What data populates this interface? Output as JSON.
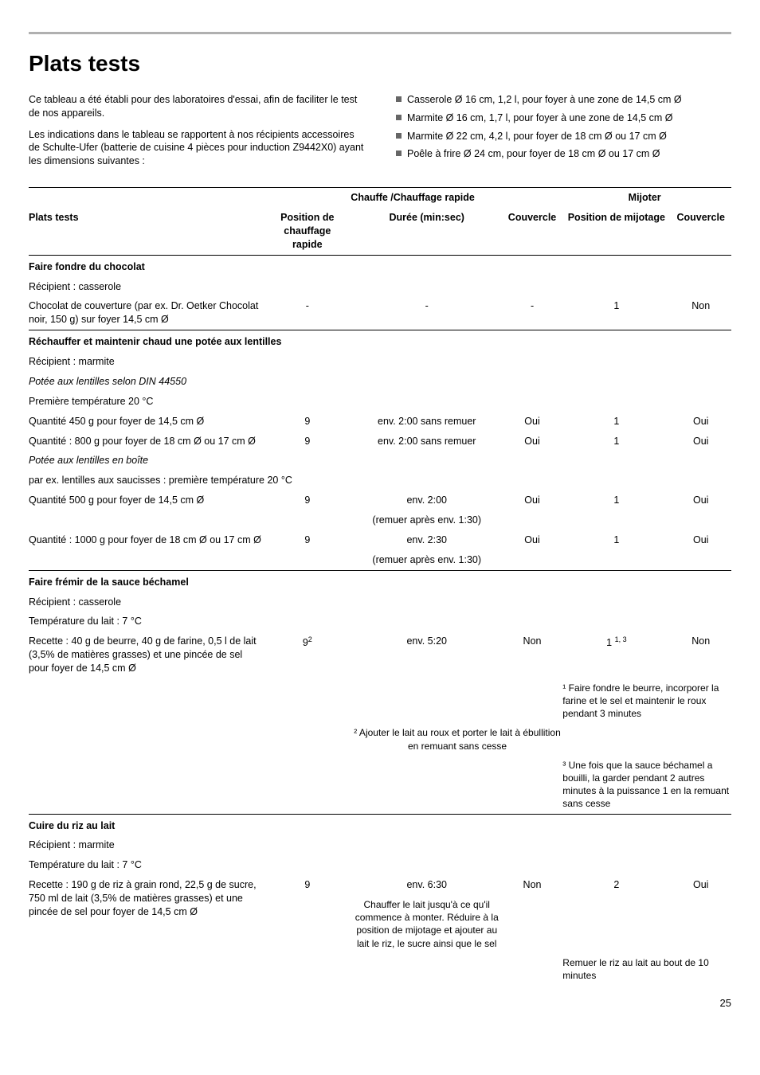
{
  "page": {
    "title": "Plats tests",
    "intro_left_p1": "Ce tableau a été établi pour des laboratoires d'essai, afin de faciliter le test de nos appareils.",
    "intro_left_p2": "Les indications dans le tableau se rapportent à nos récipients accessoires de Schulte-Ufer (batterie de cuisine 4 pièces pour induction Z9442X0) ayant les dimensions suivantes :",
    "bullets": [
      "Casserole Ø 16 cm, 1,2 l, pour foyer à une zone de 14,5 cm Ø",
      "Marmite Ø 16 cm, 1,7 l, pour foyer à une zone de 14,5 cm Ø",
      "Marmite Ø 22 cm, 4,2 l, pour foyer de 18 cm Ø ou 17 cm Ø",
      "Poêle à frire Ø 24 cm, pour foyer de 18 cm Ø ou 17 cm Ø"
    ],
    "page_number": "25"
  },
  "table": {
    "spanhead_heat": "Chauffe /Chauffage rapide",
    "spanhead_simmer": "Mijoter",
    "head_dish": "Plats tests",
    "head_pos_heat": "Position de chauffage rapide",
    "head_duration": "Durée (min:sec)",
    "head_lid1": "Couvercle",
    "head_pos_simmer": "Position de mijotage",
    "head_lid2": "Couvercle",
    "g1_title": "Faire fondre du chocolat",
    "g1_l1": "Récipient : casserole",
    "g1_l2": "Chocolat de couverture (par ex. Dr. Oetker Chocolat noir, 150 g) sur foyer 14,5 cm Ø",
    "g1_pos": "-",
    "g1_dur": "-",
    "g1_lid1": "-",
    "g1_pos2": "1",
    "g1_lid2": "Non",
    "g2_title": "Réchauffer et maintenir chaud une potée aux lentilles",
    "g2_l1": "Récipient : marmite",
    "g2_l2": "Potée aux lentilles selon DIN 44550",
    "g2_l3": "Première température 20 °C",
    "g2_r1_dish": "Quantité 450 g pour foyer de 14,5 cm Ø",
    "g2_r1_pos": "9",
    "g2_r1_dur": "env. 2:00 sans remuer",
    "g2_r1_lid1": "Oui",
    "g2_r1_pos2": "1",
    "g2_r1_lid2": "Oui",
    "g2_r2_dish": "Quantité : 800 g pour foyer de 18 cm Ø ou 17 cm Ø",
    "g2_r2_pos": "9",
    "g2_r2_dur": "env. 2:00 sans remuer",
    "g2_r2_lid1": "Oui",
    "g2_r2_pos2": "1",
    "g2_r2_lid2": "Oui",
    "g2_l4": "Potée aux lentilles en boîte",
    "g2_l5": "par ex. lentilles aux saucisses : première température 20 °C",
    "g2_r3_dish": "Quantité 500 g pour foyer de 14,5 cm Ø",
    "g2_r3_pos": "9",
    "g2_r3_dur": "env. 2:00",
    "g2_r3_note": "(remuer après env. 1:30)",
    "g2_r3_lid1": "Oui",
    "g2_r3_pos2": "1",
    "g2_r3_lid2": "Oui",
    "g2_r4_dish": "Quantité : 1000 g pour foyer de 18 cm Ø ou 17 cm Ø",
    "g2_r4_pos": "9",
    "g2_r4_dur": "env. 2:30",
    "g2_r4_note": "(remuer après env. 1:30)",
    "g2_r4_lid1": "Oui",
    "g2_r4_pos2": "1",
    "g2_r4_lid2": "Oui",
    "g3_title": "Faire frémir de la sauce béchamel",
    "g3_l1": "Récipient : casserole",
    "g3_l2": "Température du lait : 7 °C",
    "g3_r1_dish": "Recette : 40 g de beurre, 40 g de farine, 0,5 l de lait (3,5% de matières grasses) et une pincée de sel pour foyer de 14,5 cm Ø",
    "g3_r1_pos": "9",
    "g3_r1_pos_sup": "2",
    "g3_r1_dur": "env. 5:20",
    "g3_r1_lid1": "Non",
    "g3_r1_pos2": "1",
    "g3_r1_pos2_sup": "1, 3",
    "g3_r1_lid2": "Non",
    "g3_note1": "¹ Faire fondre le beurre, incorporer la farine et le sel et maintenir le roux pendant 3 minutes",
    "g3_note2": "² Ajouter le lait au roux et porter le lait à ébullition en remuant sans cesse",
    "g3_note3": "³ Une fois que la sauce béchamel a bouilli, la garder pendant 2 autres minutes à la puissance 1 en la remuant sans cesse",
    "g4_title": "Cuire du riz au lait",
    "g4_l1": "Récipient : marmite",
    "g4_l2": "Température du lait : 7 °C",
    "g4_r1_dish": "Recette : 190 g de riz à grain rond, 22,5 g de sucre, 750 ml de lait (3,5% de matières grasses) et une pincée de sel pour foyer de 14,5 cm Ø",
    "g4_r1_pos": "9",
    "g4_r1_dur": "env. 6:30",
    "g4_r1_lid1": "Non",
    "g4_r1_pos2": "2",
    "g4_r1_lid2": "Oui",
    "g4_r1_durnote": "Chauffer le lait jusqu'à ce qu'il commence à monter. Réduire à la position de mijotage et ajouter au lait le riz, le sucre ainsi que le sel",
    "g4_note": "Remuer le riz au lait au bout de 10 minutes"
  }
}
